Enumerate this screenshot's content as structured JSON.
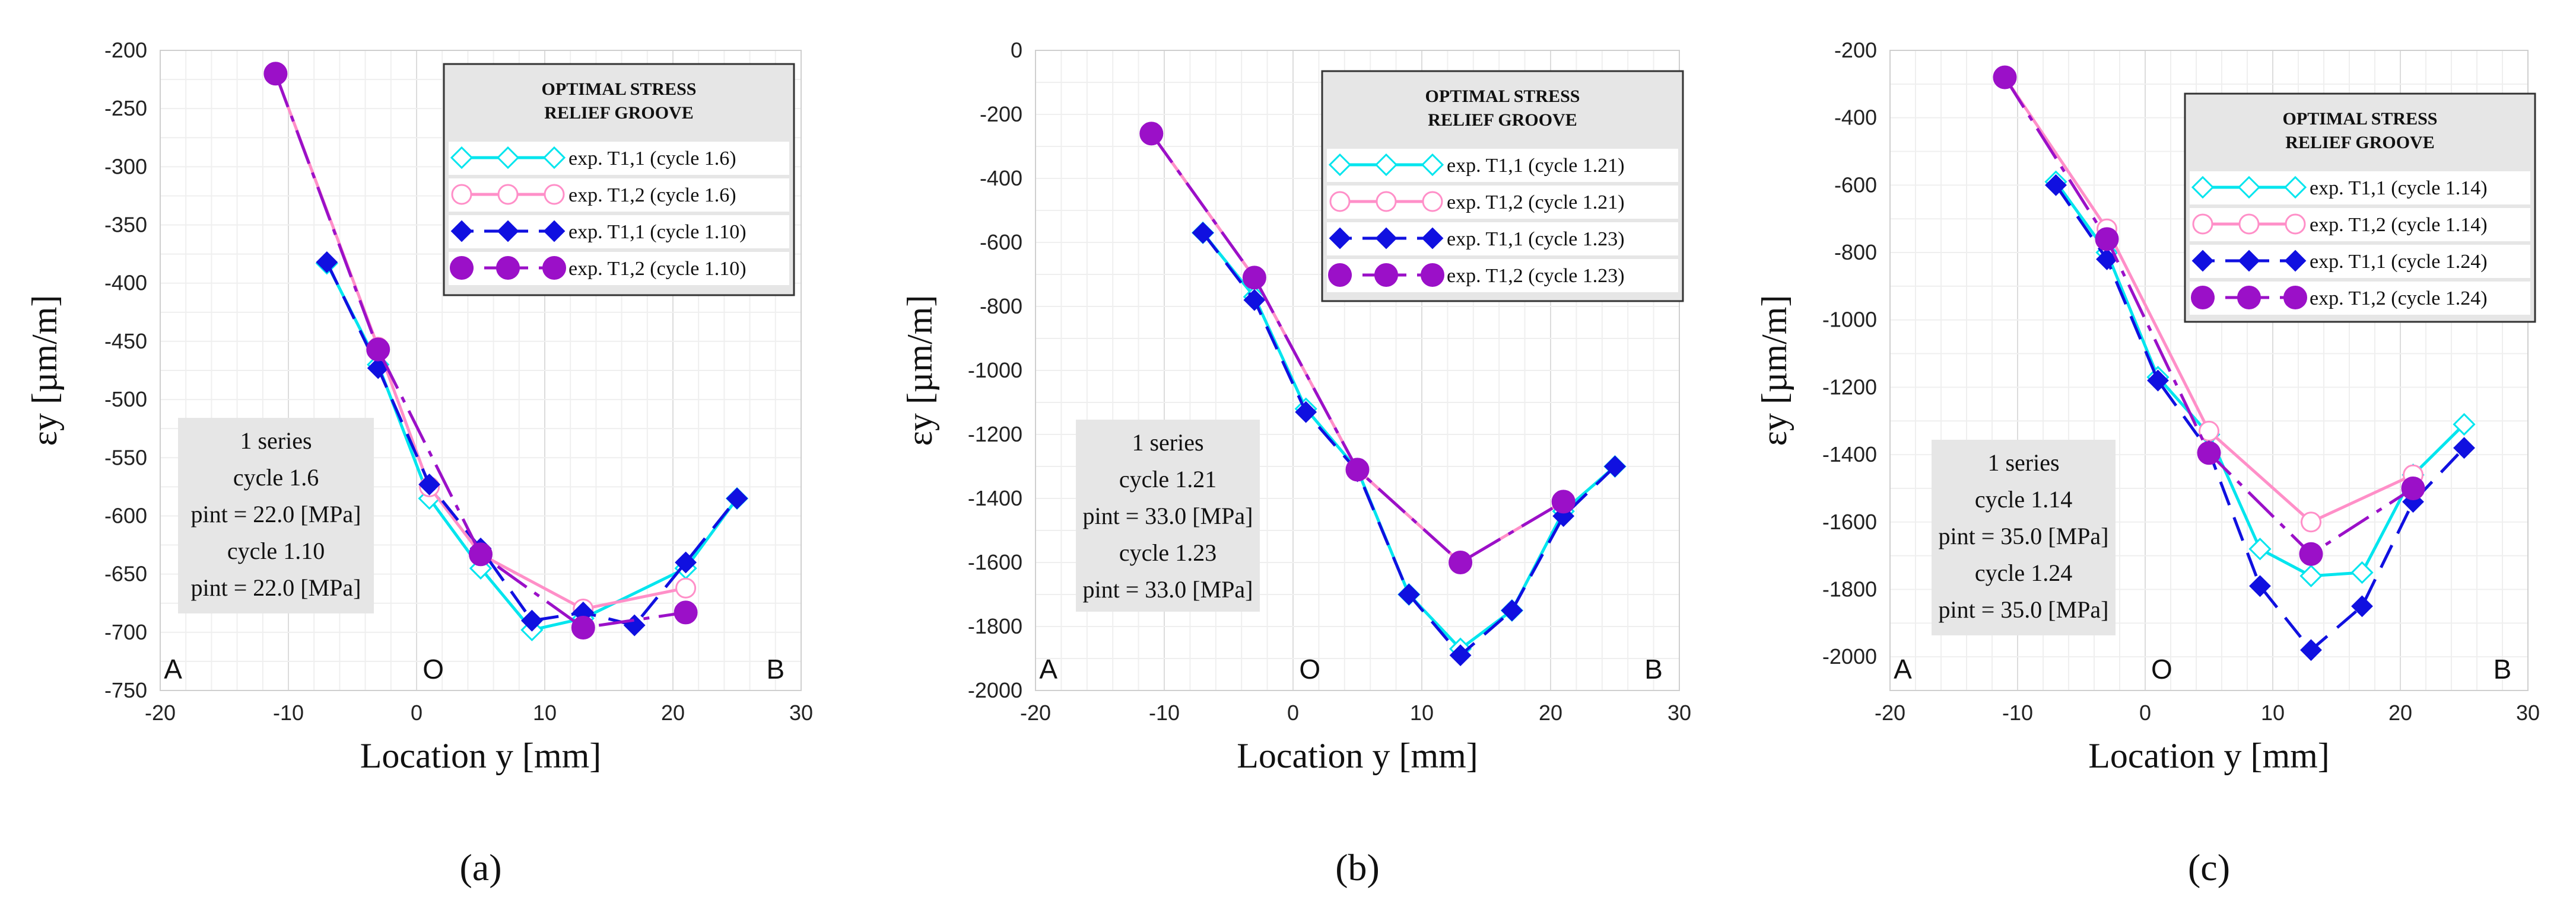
{
  "chart_data": [
    {
      "type": "line",
      "panel_label": "(a)",
      "xlabel": "Location y [mm]",
      "ylabel": "εy [µm/m]",
      "xlim": [
        -20,
        30
      ],
      "ylim": [
        -750,
        -200
      ],
      "xticks": [
        -20,
        -10,
        0,
        10,
        20,
        30
      ],
      "yticks": [
        -200,
        -250,
        -300,
        -350,
        -400,
        -450,
        -500,
        -550,
        -600,
        -650,
        -700,
        -750
      ],
      "grid": true,
      "legend": {
        "title_lines": [
          "OPTIMAL STRESS",
          "RELIEF GROOVE"
        ],
        "position": "top-right"
      },
      "info_box": {
        "line1": "1 series",
        "line2": "cycle 1.6",
        "line3": "pint = 22.0 [MPa]",
        "line4": "cycle 1.10",
        "line5": "pint = 22.0 [MPa]"
      },
      "point_labels": [
        {
          "text": "A",
          "x": -19
        },
        {
          "text": "O",
          "x": 1.3
        },
        {
          "text": "B",
          "x": 28
        }
      ],
      "series": [
        {
          "name": "exp. T1,1 (cycle 1.6)",
          "color": "#00e5ee",
          "style": "solid",
          "marker": "diamond-open",
          "x": [
            -7,
            -3,
            1,
            5,
            9,
            13,
            21,
            25
          ],
          "y": [
            -383,
            -470,
            -585,
            -645,
            -698,
            -688,
            -645,
            -585
          ]
        },
        {
          "name": "exp. T1,2 (cycle 1.6)",
          "color": "#ff8fc8",
          "style": "solid",
          "marker": "circle-open",
          "x": [
            -11,
            -3,
            1,
            5,
            13,
            21
          ],
          "y": [
            -220,
            -455,
            -575,
            -633,
            -680,
            -662
          ]
        },
        {
          "name": "exp. T1,1 (cycle 1.10)",
          "color": "#1010e0",
          "style": "dashed",
          "marker": "diamond-filled",
          "x": [
            -7,
            -3,
            1,
            5,
            9,
            13,
            17,
            21,
            25
          ],
          "y": [
            -382,
            -473,
            -573,
            -628,
            -690,
            -683,
            -694,
            -640,
            -585
          ]
        },
        {
          "name": "exp. T1,2 (cycle 1.10)",
          "color": "#9b10c8",
          "style": "dashdot",
          "marker": "circle-filled",
          "x": [
            -11,
            -3,
            5,
            13,
            21
          ],
          "y": [
            -220,
            -457,
            -633,
            -696,
            -683
          ]
        }
      ]
    },
    {
      "type": "line",
      "panel_label": "(b)",
      "xlabel": "Location y [mm]",
      "ylabel": "εy [µm/m]",
      "xlim": [
        -20,
        30
      ],
      "ylim": [
        -2000,
        0
      ],
      "xticks": [
        -20,
        -10,
        0,
        10,
        20,
        30
      ],
      "yticks": [
        0,
        -200,
        -400,
        -600,
        -800,
        -1000,
        -1200,
        -1400,
        -1600,
        -1800,
        -2000
      ],
      "grid": true,
      "legend": {
        "title_lines": [
          "OPTIMAL STRESS",
          "RELIEF GROOVE"
        ],
        "position": "top-right"
      },
      "info_box": {
        "line1": "1 series",
        "line2": "cycle 1.21",
        "line3": "pint = 33.0 [MPa]",
        "line4": "cycle 1.23",
        "line5": "pint = 33.0 [MPa]"
      },
      "point_labels": [
        {
          "text": "A",
          "x": -19
        },
        {
          "text": "O",
          "x": 1.3
        },
        {
          "text": "B",
          "x": 28
        }
      ],
      "series": [
        {
          "name": "exp. T1,1 (cycle 1.21)",
          "color": "#00e5ee",
          "style": "solid",
          "marker": "diamond-open",
          "x": [
            -7,
            -3,
            1,
            5,
            9,
            13,
            17,
            21,
            25
          ],
          "y": [
            -570,
            -770,
            -1120,
            -1310,
            -1700,
            -1870,
            -1750,
            -1440,
            -1300
          ]
        },
        {
          "name": "exp. T1,2 (cycle 1.21)",
          "color": "#ff8fc8",
          "style": "solid",
          "marker": "circle-open",
          "x": [
            -11,
            -3,
            5,
            13,
            21
          ],
          "y": [
            -260,
            -710,
            -1310,
            -1600,
            -1410
          ]
        },
        {
          "name": "exp. T1,1 (cycle 1.23)",
          "color": "#1010e0",
          "style": "dashed",
          "marker": "diamond-filled",
          "x": [
            -7,
            -3,
            1,
            5,
            9,
            13,
            17,
            21,
            25
          ],
          "y": [
            -570,
            -780,
            -1130,
            -1315,
            -1700,
            -1890,
            -1750,
            -1455,
            -1300
          ]
        },
        {
          "name": "exp. T1,2 (cycle 1.23)",
          "color": "#9b10c8",
          "style": "dashdot",
          "marker": "circle-filled",
          "x": [
            -11,
            -3,
            5,
            13,
            21
          ],
          "y": [
            -260,
            -710,
            -1310,
            -1600,
            -1410
          ]
        }
      ]
    },
    {
      "type": "line",
      "panel_label": "(c)",
      "xlabel": "Location y [mm]",
      "ylabel": "εy [µm/m]",
      "xlim": [
        -20,
        30
      ],
      "ylim": [
        -2100,
        -200
      ],
      "xticks": [
        -20,
        -10,
        0,
        10,
        20,
        30
      ],
      "yticks": [
        -200,
        -400,
        -600,
        -800,
        -1000,
        -1200,
        -1400,
        -1600,
        -1800,
        -2000
      ],
      "grid": true,
      "legend": {
        "title_lines": [
          "OPTIMAL STRESS",
          "RELIEF GROOVE"
        ],
        "position": "top-right"
      },
      "info_box": {
        "line1": "1 series",
        "line2": "cycle 1.14",
        "line3": "pint = 35.0 [MPa]",
        "line4": "cycle 1.24",
        "line5": "pint = 35.0 [MPa]"
      },
      "point_labels": [
        {
          "text": "A",
          "x": -19
        },
        {
          "text": "O",
          "x": 1.3
        },
        {
          "text": "B",
          "x": 28
        }
      ],
      "series": [
        {
          "name": "exp. T1,1 (cycle 1.14)",
          "color": "#00e5ee",
          "style": "solid",
          "marker": "diamond-open",
          "x": [
            -7,
            -3,
            1,
            5,
            9,
            13,
            17,
            21,
            25
          ],
          "y": [
            -590,
            -800,
            -1170,
            -1340,
            -1680,
            -1760,
            -1750,
            -1460,
            -1310
          ]
        },
        {
          "name": "exp. T1,2 (cycle 1.14)",
          "color": "#ff8fc8",
          "style": "solid",
          "marker": "circle-open",
          "x": [
            -11,
            -3,
            5,
            13,
            21
          ],
          "y": [
            -280,
            -730,
            -1330,
            -1600,
            -1460
          ]
        },
        {
          "name": "exp. T1,1 (cycle 1.24)",
          "color": "#1010e0",
          "style": "dashed",
          "marker": "diamond-filled",
          "x": [
            -7,
            -3,
            1,
            5,
            9,
            13,
            17,
            21,
            25
          ],
          "y": [
            -600,
            -820,
            -1180,
            -1390,
            -1790,
            -1980,
            -1850,
            -1540,
            -1380
          ]
        },
        {
          "name": "exp. T1,2 (cycle 1.24)",
          "color": "#9b10c8",
          "style": "dashdot",
          "marker": "circle-filled",
          "x": [
            -11,
            -3,
            5,
            13,
            21
          ],
          "y": [
            -280,
            -760,
            -1395,
            -1695,
            -1500
          ]
        }
      ]
    }
  ]
}
